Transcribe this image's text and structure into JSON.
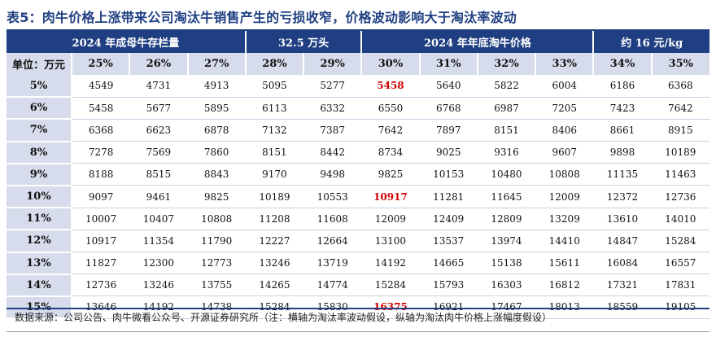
{
  "title": "表5：肉牛价格上涨带来公司淘汰牛销售产生的亏损收窄，价格波动影响大于淘汰率波动",
  "header_groups": [
    "2024 年成母牛存栏量",
    "32.5 万头",
    "2024 年年底淘牛价格",
    "约 16 元/kg"
  ],
  "unit_label": "单位：万元",
  "columns": [
    "25%",
    "26%",
    "27%",
    "28%",
    "29%",
    "30%",
    "31%",
    "32%",
    "33%",
    "34%",
    "35%"
  ],
  "rows": [
    {
      "label": "5%",
      "values": [
        "4549",
        "4731",
        "4913",
        "5095",
        "5277",
        "5458",
        "5640",
        "5822",
        "6004",
        "6186",
        "6368"
      ]
    },
    {
      "label": "6%",
      "values": [
        "5458",
        "5677",
        "5895",
        "6113",
        "6332",
        "6550",
        "6768",
        "6987",
        "7205",
        "7423",
        "7642"
      ]
    },
    {
      "label": "7%",
      "values": [
        "6368",
        "6623",
        "6878",
        "7132",
        "7387",
        "7642",
        "7897",
        "8151",
        "8406",
        "8661",
        "8915"
      ]
    },
    {
      "label": "8%",
      "values": [
        "7278",
        "7569",
        "7860",
        "8151",
        "8442",
        "8734",
        "9025",
        "9316",
        "9607",
        "9898",
        "10189"
      ]
    },
    {
      "label": "9%",
      "values": [
        "8188",
        "8515",
        "8843",
        "9170",
        "9498",
        "9825",
        "10153",
        "10480",
        "10808",
        "11135",
        "11463"
      ]
    },
    {
      "label": "10%",
      "values": [
        "9097",
        "9461",
        "9825",
        "10189",
        "10553",
        "10917",
        "11281",
        "11645",
        "12009",
        "12372",
        "12736"
      ]
    },
    {
      "label": "11%",
      "values": [
        "10007",
        "10407",
        "10808",
        "11208",
        "11608",
        "12009",
        "12409",
        "12809",
        "13209",
        "13610",
        "14010"
      ]
    },
    {
      "label": "12%",
      "values": [
        "10917",
        "11354",
        "11790",
        "12227",
        "12664",
        "13100",
        "13537",
        "13974",
        "14410",
        "14847",
        "15284"
      ]
    },
    {
      "label": "13%",
      "values": [
        "11827",
        "12300",
        "12773",
        "13246",
        "13719",
        "14192",
        "14665",
        "15138",
        "15611",
        "16084",
        "16557"
      ]
    },
    {
      "label": "14%",
      "values": [
        "12736",
        "13246",
        "13755",
        "14265",
        "14774",
        "15284",
        "15793",
        "16303",
        "16812",
        "17321",
        "17831"
      ]
    },
    {
      "label": "15%",
      "values": [
        "13646",
        "14192",
        "14738",
        "15284",
        "15830",
        "16375",
        "16921",
        "17467",
        "18013",
        "18559",
        "19105"
      ]
    }
  ],
  "highlighted_cells": [
    {
      "row": 0,
      "col": 5
    },
    {
      "row": 5,
      "col": 5
    },
    {
      "row": 10,
      "col": 5
    }
  ],
  "source": "数据来源：公司公告、肉牛微看公众号、开源证券研究所（注：横轴为淘汰率波动假设，纵轴为淘汰肉牛价格上涨幅度假设）",
  "colors": {
    "header_dark": "#1f3f82",
    "header_light": "#d6dceb",
    "highlight": "#d10000"
  }
}
